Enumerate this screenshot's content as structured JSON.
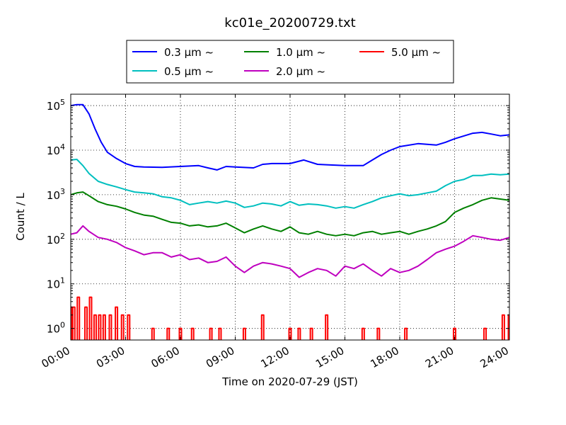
{
  "chart_data": {
    "type": "line",
    "title": "kc01e_20200729.txt",
    "xlabel": "Time on 2020-07-29 (JST)",
    "ylabel": "Count / L",
    "xscale": "time",
    "yscale": "log",
    "xlim": [
      "2020-07-29 00:00",
      "2020-07-30 00:00"
    ],
    "ylim": [
      0.55,
      180000
    ],
    "grid": true,
    "legend_position": "top-center, above plot",
    "x_tick_labels": [
      "00:00",
      "03:00",
      "06:00",
      "09:00",
      "12:00",
      "15:00",
      "18:00",
      "21:00",
      "24:00"
    ],
    "y_tick_labels": [
      "10^0",
      "10^1",
      "10^2",
      "10^3",
      "10^4",
      "10^5"
    ],
    "y_tick_values": [
      1,
      10,
      100,
      1000,
      10000,
      100000
    ],
    "series": [
      {
        "name": "0.3 μm ~",
        "color": "#0000ff",
        "points": [
          [
            "00:00",
            100000
          ],
          [
            "00:20",
            105000
          ],
          [
            "00:40",
            105000
          ],
          [
            "01:00",
            65000
          ],
          [
            "01:20",
            30000
          ],
          [
            "01:40",
            15000
          ],
          [
            "02:00",
            9000
          ],
          [
            "02:30",
            6500
          ],
          [
            "03:00",
            5000
          ],
          [
            "03:30",
            4300
          ],
          [
            "04:00",
            4200
          ],
          [
            "05:00",
            4100
          ],
          [
            "06:00",
            4300
          ],
          [
            "07:00",
            4500
          ],
          [
            "07:30",
            4000
          ],
          [
            "08:00",
            3600
          ],
          [
            "08:30",
            4300
          ],
          [
            "09:00",
            4200
          ],
          [
            "10:00",
            4000
          ],
          [
            "10:30",
            4800
          ],
          [
            "11:00",
            5000
          ],
          [
            "12:00",
            5000
          ],
          [
            "12:45",
            6000
          ],
          [
            "13:30",
            4800
          ],
          [
            "14:00",
            4700
          ],
          [
            "15:00",
            4500
          ],
          [
            "16:00",
            4500
          ],
          [
            "16:30",
            6000
          ],
          [
            "17:00",
            8000
          ],
          [
            "17:30",
            10000
          ],
          [
            "18:00",
            12000
          ],
          [
            "19:00",
            14000
          ],
          [
            "20:00",
            13000
          ],
          [
            "20:30",
            15000
          ],
          [
            "21:00",
            18000
          ],
          [
            "22:00",
            24000
          ],
          [
            "22:30",
            25000
          ],
          [
            "23:00",
            23000
          ],
          [
            "23:30",
            21000
          ],
          [
            "24:00",
            22000
          ]
        ]
      },
      {
        "name": "0.5 μm ~",
        "color": "#00bfbf",
        "points": [
          [
            "00:00",
            6000
          ],
          [
            "00:20",
            6200
          ],
          [
            "00:40",
            4500
          ],
          [
            "01:00",
            3000
          ],
          [
            "01:30",
            2000
          ],
          [
            "02:00",
            1700
          ],
          [
            "02:30",
            1500
          ],
          [
            "03:00",
            1300
          ],
          [
            "03:30",
            1150
          ],
          [
            "04:00",
            1100
          ],
          [
            "04:30",
            1050
          ],
          [
            "05:00",
            900
          ],
          [
            "05:30",
            850
          ],
          [
            "06:00",
            750
          ],
          [
            "06:30",
            600
          ],
          [
            "07:00",
            650
          ],
          [
            "07:30",
            700
          ],
          [
            "08:00",
            650
          ],
          [
            "08:30",
            720
          ],
          [
            "09:00",
            650
          ],
          [
            "09:30",
            520
          ],
          [
            "10:00",
            560
          ],
          [
            "10:30",
            650
          ],
          [
            "11:00",
            620
          ],
          [
            "11:30",
            560
          ],
          [
            "12:00",
            700
          ],
          [
            "12:30",
            580
          ],
          [
            "13:00",
            620
          ],
          [
            "13:30",
            600
          ],
          [
            "14:00",
            560
          ],
          [
            "14:30",
            500
          ],
          [
            "15:00",
            540
          ],
          [
            "15:30",
            500
          ],
          [
            "16:00",
            600
          ],
          [
            "16:30",
            700
          ],
          [
            "17:00",
            850
          ],
          [
            "17:30",
            950
          ],
          [
            "18:00",
            1050
          ],
          [
            "18:30",
            950
          ],
          [
            "19:00",
            1000
          ],
          [
            "19:30",
            1100
          ],
          [
            "20:00",
            1200
          ],
          [
            "20:30",
            1600
          ],
          [
            "21:00",
            2000
          ],
          [
            "21:30",
            2200
          ],
          [
            "22:00",
            2700
          ],
          [
            "22:30",
            2700
          ],
          [
            "23:00",
            2900
          ],
          [
            "23:30",
            2800
          ],
          [
            "24:00",
            2900
          ]
        ]
      },
      {
        "name": "1.0 μm ~",
        "color": "#008000",
        "points": [
          [
            "00:00",
            1000
          ],
          [
            "00:20",
            1100
          ],
          [
            "00:40",
            1150
          ],
          [
            "01:00",
            950
          ],
          [
            "01:30",
            700
          ],
          [
            "02:00",
            600
          ],
          [
            "02:30",
            550
          ],
          [
            "03:00",
            480
          ],
          [
            "03:30",
            400
          ],
          [
            "04:00",
            350
          ],
          [
            "04:30",
            330
          ],
          [
            "05:00",
            280
          ],
          [
            "05:30",
            240
          ],
          [
            "06:00",
            230
          ],
          [
            "06:30",
            200
          ],
          [
            "07:00",
            210
          ],
          [
            "07:30",
            190
          ],
          [
            "08:00",
            200
          ],
          [
            "08:30",
            230
          ],
          [
            "09:00",
            180
          ],
          [
            "09:30",
            140
          ],
          [
            "10:00",
            170
          ],
          [
            "10:30",
            200
          ],
          [
            "11:00",
            170
          ],
          [
            "11:30",
            150
          ],
          [
            "12:00",
            190
          ],
          [
            "12:30",
            140
          ],
          [
            "13:00",
            130
          ],
          [
            "13:30",
            150
          ],
          [
            "14:00",
            130
          ],
          [
            "14:30",
            120
          ],
          [
            "15:00",
            130
          ],
          [
            "15:30",
            120
          ],
          [
            "16:00",
            140
          ],
          [
            "16:30",
            150
          ],
          [
            "17:00",
            130
          ],
          [
            "17:30",
            140
          ],
          [
            "18:00",
            150
          ],
          [
            "18:30",
            130
          ],
          [
            "19:00",
            150
          ],
          [
            "19:30",
            170
          ],
          [
            "20:00",
            200
          ],
          [
            "20:30",
            250
          ],
          [
            "21:00",
            400
          ],
          [
            "21:30",
            500
          ],
          [
            "22:00",
            600
          ],
          [
            "22:30",
            750
          ],
          [
            "23:00",
            850
          ],
          [
            "23:30",
            800
          ],
          [
            "24:00",
            750
          ]
        ]
      },
      {
        "name": "2.0 μm ~",
        "color": "#bf00bf",
        "points": [
          [
            "00:00",
            130
          ],
          [
            "00:20",
            140
          ],
          [
            "00:40",
            200
          ],
          [
            "01:00",
            150
          ],
          [
            "01:30",
            110
          ],
          [
            "02:00",
            100
          ],
          [
            "02:30",
            85
          ],
          [
            "03:00",
            65
          ],
          [
            "03:30",
            55
          ],
          [
            "04:00",
            45
          ],
          [
            "04:30",
            50
          ],
          [
            "05:00",
            50
          ],
          [
            "05:30",
            40
          ],
          [
            "06:00",
            45
          ],
          [
            "06:30",
            35
          ],
          [
            "07:00",
            38
          ],
          [
            "07:30",
            30
          ],
          [
            "08:00",
            32
          ],
          [
            "08:30",
            40
          ],
          [
            "09:00",
            25
          ],
          [
            "09:30",
            18
          ],
          [
            "10:00",
            25
          ],
          [
            "10:30",
            30
          ],
          [
            "11:00",
            28
          ],
          [
            "11:30",
            25
          ],
          [
            "12:00",
            22
          ],
          [
            "12:30",
            14
          ],
          [
            "13:00",
            18
          ],
          [
            "13:30",
            22
          ],
          [
            "14:00",
            20
          ],
          [
            "14:30",
            15
          ],
          [
            "15:00",
            25
          ],
          [
            "15:30",
            22
          ],
          [
            "16:00",
            28
          ],
          [
            "16:30",
            20
          ],
          [
            "17:00",
            15
          ],
          [
            "17:30",
            22
          ],
          [
            "18:00",
            18
          ],
          [
            "18:30",
            20
          ],
          [
            "19:00",
            25
          ],
          [
            "19:30",
            35
          ],
          [
            "20:00",
            50
          ],
          [
            "20:30",
            60
          ],
          [
            "21:00",
            70
          ],
          [
            "21:30",
            90
          ],
          [
            "22:00",
            120
          ],
          [
            "22:30",
            110
          ],
          [
            "23:00",
            100
          ],
          [
            "23:30",
            95
          ],
          [
            "24:00",
            110
          ]
        ]
      },
      {
        "name": "5.0 μm ~",
        "color": "#ff0000",
        "points": [
          [
            "00:00",
            3
          ],
          [
            "00:10",
            3
          ],
          [
            "00:25",
            5
          ],
          [
            "00:50",
            3
          ],
          [
            "01:05",
            5
          ],
          [
            "01:20",
            2
          ],
          [
            "01:35",
            2
          ],
          [
            "01:50",
            2
          ],
          [
            "02:10",
            2
          ],
          [
            "02:30",
            3
          ],
          [
            "02:50",
            2
          ],
          [
            "03:10",
            2
          ],
          [
            "04:30",
            1
          ],
          [
            "05:20",
            1
          ],
          [
            "06:00",
            1
          ],
          [
            "06:40",
            1
          ],
          [
            "07:40",
            1
          ],
          [
            "08:10",
            1
          ],
          [
            "09:30",
            1
          ],
          [
            "10:30",
            2
          ],
          [
            "12:00",
            1
          ],
          [
            "12:30",
            1
          ],
          [
            "13:10",
            1
          ],
          [
            "14:00",
            2
          ],
          [
            "16:00",
            1
          ],
          [
            "16:50",
            1
          ],
          [
            "18:20",
            1
          ],
          [
            "21:00",
            1
          ],
          [
            "22:40",
            1
          ],
          [
            "23:40",
            2
          ],
          [
            "24:00",
            2
          ]
        ]
      }
    ]
  }
}
